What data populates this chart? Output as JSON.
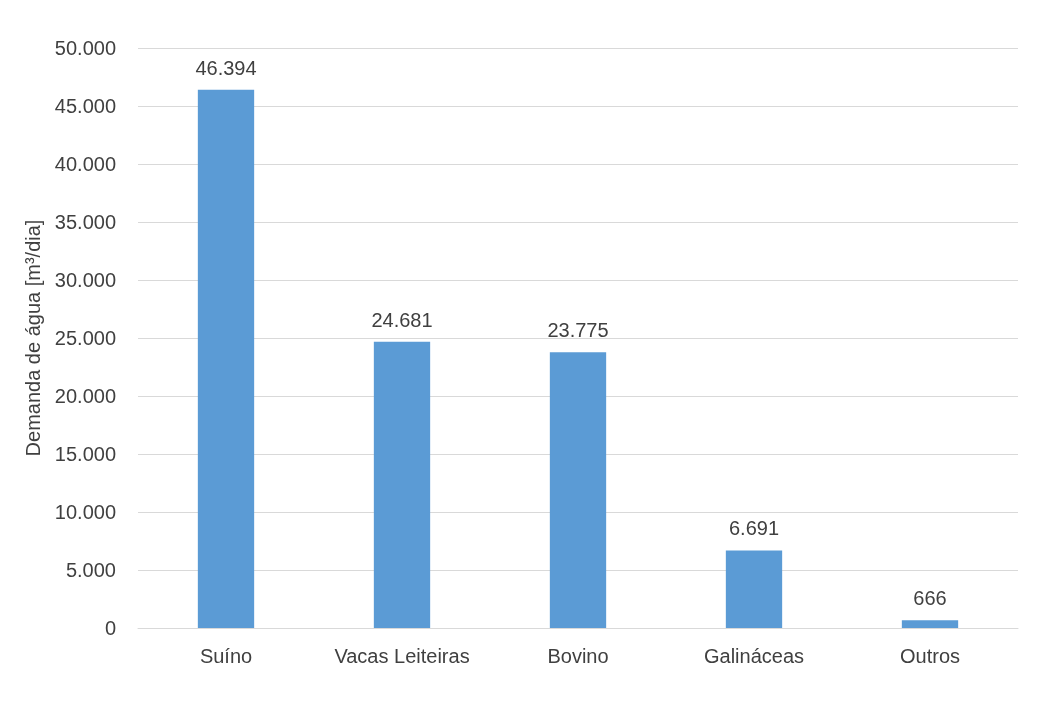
{
  "chart_data": {
    "type": "bar",
    "ylabel": "Demanda de água [m³/dia]",
    "categories": [
      "Suíno",
      "Vacas Leiteiras",
      "Bovino",
      "Galináceas",
      "Outros"
    ],
    "values": [
      46394,
      24681,
      23775,
      6691,
      666
    ],
    "value_labels": [
      "46.394",
      "24.681",
      "23.775",
      "6.691",
      "666"
    ],
    "color": "#5b9bd5",
    "ylim": [
      0,
      50000
    ],
    "yticks": [
      {
        "value": 0,
        "label": "0"
      },
      {
        "value": 5000,
        "label": "5.000"
      },
      {
        "value": 10000,
        "label": "10.000"
      },
      {
        "value": 15000,
        "label": "15.000"
      },
      {
        "value": 20000,
        "label": "20.000"
      },
      {
        "value": 25000,
        "label": "25.000"
      },
      {
        "value": 30000,
        "label": "30.000"
      },
      {
        "value": 35000,
        "label": "35.000"
      },
      {
        "value": 40000,
        "label": "40.000"
      },
      {
        "value": 45000,
        "label": "45.000"
      },
      {
        "value": 50000,
        "label": "50.000"
      }
    ],
    "grid": "y"
  }
}
